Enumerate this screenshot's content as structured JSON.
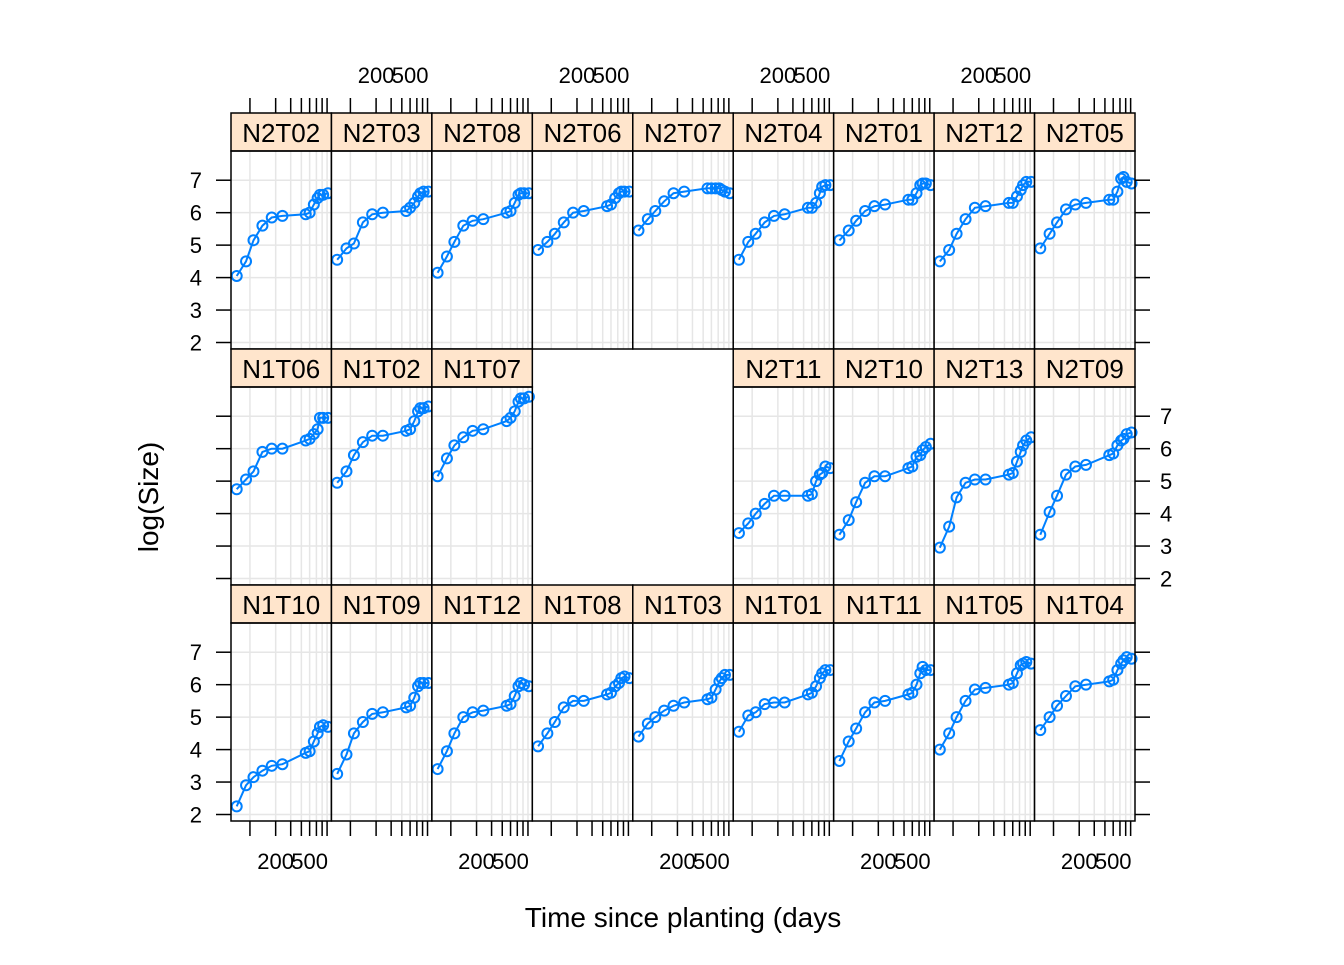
{
  "chart_data": {
    "type": "line",
    "layout": "trellis 9 columns x 3 rows",
    "xlabel": "Time since planting (days",
    "ylabel": "log(Size)",
    "x_scale": "log",
    "xlim": [
      60,
      900
    ],
    "ylim": [
      1.8,
      7.9
    ],
    "x_ticks": [
      200,
      500
    ],
    "y_ticks": [
      2,
      3,
      4,
      5,
      6,
      7
    ],
    "x_tick_labels": [
      "200",
      "500"
    ],
    "y_tick_labels": [
      "2",
      "3",
      "4",
      "5",
      "6",
      "7"
    ],
    "grid": true,
    "x_days": [
      70,
      90,
      110,
      140,
      180,
      240,
      450,
      500,
      560,
      620,
      660,
      720,
      820
    ],
    "colors": {
      "series": "#0080ff",
      "strip": "#ffe5cc",
      "grid": "#e6e6e6",
      "frame": "#000000"
    },
    "panels": [
      {
        "name": "N2T02",
        "row": 0,
        "col": 0,
        "values": [
          4.05,
          4.5,
          5.15,
          5.6,
          5.85,
          5.9,
          5.95,
          6.0,
          6.25,
          6.45,
          6.55,
          6.55,
          6.6
        ]
      },
      {
        "name": "N2T03",
        "row": 0,
        "col": 1,
        "values": [
          4.55,
          4.9,
          5.05,
          5.7,
          5.95,
          6.0,
          6.05,
          6.15,
          6.3,
          6.5,
          6.6,
          6.65,
          6.65
        ]
      },
      {
        "name": "N2T08",
        "row": 0,
        "col": 2,
        "values": [
          4.15,
          4.65,
          5.1,
          5.6,
          5.75,
          5.8,
          6.0,
          6.05,
          6.3,
          6.55,
          6.6,
          6.6,
          6.6
        ]
      },
      {
        "name": "N2T06",
        "row": 0,
        "col": 3,
        "values": [
          4.85,
          5.1,
          5.35,
          5.7,
          6.0,
          6.05,
          6.2,
          6.25,
          6.45,
          6.6,
          6.65,
          6.65,
          6.65
        ]
      },
      {
        "name": "N2T07",
        "row": 0,
        "col": 4,
        "values": [
          5.45,
          5.8,
          6.05,
          6.35,
          6.6,
          6.65,
          6.75,
          6.75,
          6.75,
          6.75,
          6.7,
          6.65,
          6.6
        ]
      },
      {
        "name": "N2T04",
        "row": 0,
        "col": 5,
        "values": [
          4.55,
          5.1,
          5.35,
          5.7,
          5.9,
          5.95,
          6.15,
          6.15,
          6.3,
          6.6,
          6.8,
          6.85,
          6.85
        ]
      },
      {
        "name": "N2T01",
        "row": 0,
        "col": 6,
        "values": [
          5.15,
          5.45,
          5.75,
          6.05,
          6.2,
          6.25,
          6.4,
          6.4,
          6.6,
          6.85,
          6.9,
          6.9,
          6.85
        ]
      },
      {
        "name": "N2T12",
        "row": 0,
        "col": 7,
        "values": [
          4.5,
          4.85,
          5.35,
          5.8,
          6.15,
          6.2,
          6.3,
          6.3,
          6.5,
          6.7,
          6.85,
          6.95,
          6.95
        ]
      },
      {
        "name": "N2T05",
        "row": 0,
        "col": 8,
        "values": [
          4.9,
          5.35,
          5.7,
          6.1,
          6.25,
          6.3,
          6.4,
          6.4,
          6.65,
          7.05,
          7.1,
          6.95,
          6.9
        ]
      },
      {
        "name": "N1T06",
        "row": 1,
        "col": 0,
        "values": [
          4.75,
          5.05,
          5.3,
          5.9,
          6.0,
          6.0,
          6.25,
          6.3,
          6.45,
          6.6,
          6.95,
          6.95,
          6.95
        ]
      },
      {
        "name": "N1T02",
        "row": 1,
        "col": 1,
        "values": [
          4.95,
          5.3,
          5.8,
          6.2,
          6.4,
          6.4,
          6.55,
          6.6,
          6.85,
          7.15,
          7.25,
          7.25,
          7.3
        ]
      },
      {
        "name": "N1T07",
        "row": 1,
        "col": 2,
        "values": [
          5.15,
          5.7,
          6.1,
          6.35,
          6.55,
          6.6,
          6.85,
          6.95,
          7.15,
          7.45,
          7.55,
          7.55,
          7.6
        ]
      },
      {
        "name": "N2T11",
        "row": 1,
        "col": 5,
        "values": [
          3.4,
          3.7,
          4.0,
          4.3,
          4.55,
          4.55,
          4.55,
          4.6,
          5.0,
          5.2,
          5.25,
          5.45,
          5.4
        ]
      },
      {
        "name": "N2T10",
        "row": 1,
        "col": 6,
        "values": [
          3.35,
          3.8,
          4.35,
          4.95,
          5.15,
          5.15,
          5.4,
          5.45,
          5.75,
          5.8,
          5.95,
          6.05,
          6.15
        ]
      },
      {
        "name": "N2T13",
        "row": 1,
        "col": 7,
        "values": [
          2.95,
          3.6,
          4.5,
          4.95,
          5.05,
          5.05,
          5.2,
          5.25,
          5.6,
          5.9,
          6.1,
          6.25,
          6.35
        ]
      },
      {
        "name": "N2T09",
        "row": 1,
        "col": 8,
        "values": [
          3.35,
          4.05,
          4.55,
          5.2,
          5.45,
          5.5,
          5.8,
          5.85,
          6.1,
          6.25,
          6.3,
          6.45,
          6.5
        ]
      },
      {
        "name": "N1T10",
        "row": 2,
        "col": 0,
        "values": [
          2.25,
          2.9,
          3.15,
          3.35,
          3.5,
          3.55,
          3.9,
          3.95,
          4.25,
          4.5,
          4.7,
          4.75,
          4.7
        ]
      },
      {
        "name": "N1T09",
        "row": 2,
        "col": 1,
        "values": [
          3.25,
          3.85,
          4.5,
          4.85,
          5.1,
          5.15,
          5.3,
          5.35,
          5.6,
          5.95,
          6.05,
          6.05,
          6.05
        ]
      },
      {
        "name": "N1T12",
        "row": 2,
        "col": 2,
        "values": [
          3.4,
          3.95,
          4.5,
          5.0,
          5.15,
          5.2,
          5.35,
          5.4,
          5.65,
          5.95,
          6.05,
          6.0,
          5.95
        ]
      },
      {
        "name": "N1T08",
        "row": 2,
        "col": 3,
        "values": [
          4.1,
          4.5,
          4.85,
          5.3,
          5.5,
          5.5,
          5.7,
          5.75,
          5.95,
          6.05,
          6.2,
          6.25,
          6.2
        ]
      },
      {
        "name": "N1T03",
        "row": 2,
        "col": 4,
        "values": [
          4.4,
          4.8,
          5.0,
          5.2,
          5.35,
          5.45,
          5.55,
          5.6,
          5.85,
          6.1,
          6.2,
          6.3,
          6.3
        ]
      },
      {
        "name": "N1T01",
        "row": 2,
        "col": 5,
        "values": [
          4.55,
          5.05,
          5.15,
          5.4,
          5.45,
          5.45,
          5.7,
          5.75,
          5.95,
          6.2,
          6.35,
          6.45,
          6.45
        ]
      },
      {
        "name": "N1T11",
        "row": 2,
        "col": 6,
        "values": [
          3.65,
          4.25,
          4.65,
          5.15,
          5.45,
          5.5,
          5.7,
          5.75,
          6.0,
          6.35,
          6.55,
          6.45,
          6.45
        ]
      },
      {
        "name": "N1T05",
        "row": 2,
        "col": 7,
        "values": [
          4.0,
          4.5,
          5.0,
          5.5,
          5.85,
          5.9,
          6.0,
          6.05,
          6.35,
          6.6,
          6.65,
          6.7,
          6.65
        ]
      },
      {
        "name": "N1T04",
        "row": 2,
        "col": 8,
        "values": [
          4.6,
          5.0,
          5.35,
          5.65,
          5.95,
          6.0,
          6.1,
          6.15,
          6.45,
          6.65,
          6.75,
          6.85,
          6.8
        ]
      }
    ]
  }
}
